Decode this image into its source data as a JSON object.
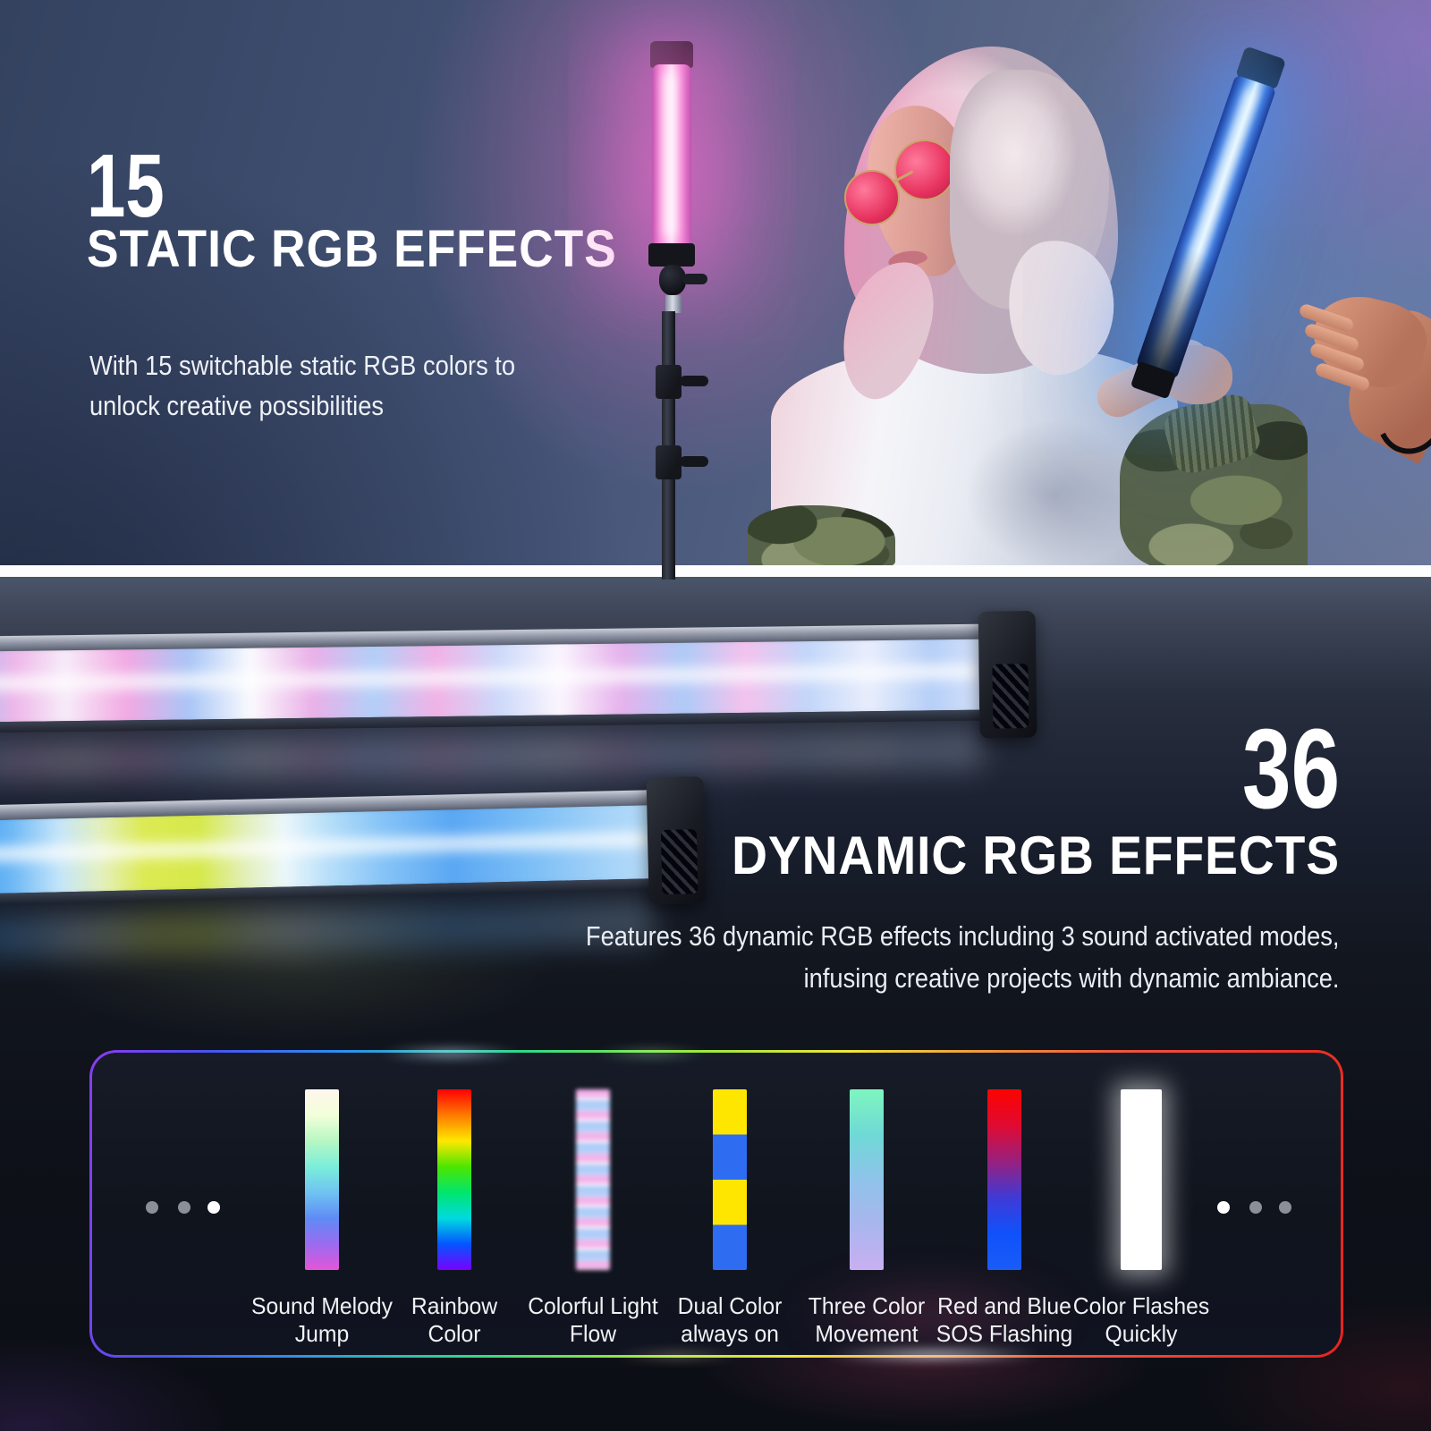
{
  "static_section": {
    "number": "15",
    "title": "STATIC RGB EFFECTS",
    "description_lines": [
      "With 15 switchable static RGB colors to",
      "unlock creative possibilities"
    ]
  },
  "dynamic_section": {
    "number": "36",
    "title": "DYNAMIC RGB EFFECTS",
    "description_lines": [
      "Features 36 dynamic RGB effects including 3 sound activated modes,",
      "infusing creative projects with dynamic ambiance."
    ]
  },
  "effects_panel": {
    "pagination_left": [
      {
        "active": false
      },
      {
        "active": false
      },
      {
        "active": true
      }
    ],
    "pagination_right": [
      {
        "active": true
      },
      {
        "active": false
      },
      {
        "active": false
      }
    ],
    "effects": [
      {
        "id": "sound-melody-jump",
        "label_lines": [
          "Sound Melody",
          "Jump"
        ],
        "style": "gradient",
        "colors": [
          "#fff6ee",
          "#f3ffd9",
          "#b7f7c3",
          "#7beed9",
          "#6fc3f2",
          "#5f8bf5",
          "#9b6bf0",
          "#e455d8"
        ]
      },
      {
        "id": "rainbow-color",
        "label_lines": [
          "Rainbow",
          "Color"
        ],
        "style": "gradient",
        "colors": [
          "#ff0004",
          "#ff7a00",
          "#ffe800",
          "#4ce600",
          "#00e66e",
          "#00d9e0",
          "#0455ff",
          "#7a00ff"
        ]
      },
      {
        "id": "colorful-light-flow",
        "label_lines": [
          "Colorful Light",
          "Flow"
        ],
        "style": "stripes",
        "colors": [
          "#f3b4ea",
          "#aecdf8",
          "#fdeffb",
          "#bdd6fa"
        ]
      },
      {
        "id": "dual-color-always-on",
        "label_lines": [
          "Dual Color",
          "always on"
        ],
        "style": "blocks",
        "colors": [
          "#ffe600",
          "#2e6cf2",
          "#ffe600",
          "#2e6cf2"
        ]
      },
      {
        "id": "three-color-movement",
        "label_lines": [
          "Three Color",
          "Movement"
        ],
        "style": "gradient",
        "colors": [
          "#7ef6bf",
          "#6fd9d6",
          "#8fc3ea",
          "#a9b6ee",
          "#c9aff2"
        ]
      },
      {
        "id": "red-blue-sos-flashing",
        "label_lines": [
          "Red and Blue",
          "SOS Flashing"
        ],
        "style": "gradient",
        "colors": [
          "#fb0300",
          "#e00a31",
          "#97207f",
          "#3f3ad6",
          "#0f52fb",
          "#1a5cf7"
        ]
      },
      {
        "id": "color-flashes-quickly",
        "label_lines": [
          "Color Flashes",
          "Quickly"
        ],
        "style": "solid",
        "colors": [
          "#ffffff"
        ]
      }
    ]
  },
  "colors": {
    "headline_text": "#ffffff",
    "body_text": "#e9edf4",
    "divider": "#ffffff",
    "panel_border_left": "#8a3cf0",
    "panel_border_right": "#e8231d",
    "pagination_active": "#ffffff",
    "pagination_inactive": "#8a8f98",
    "pink_tube_glow": "#fa69d2",
    "blue_tube_glow": "#4696ff"
  }
}
